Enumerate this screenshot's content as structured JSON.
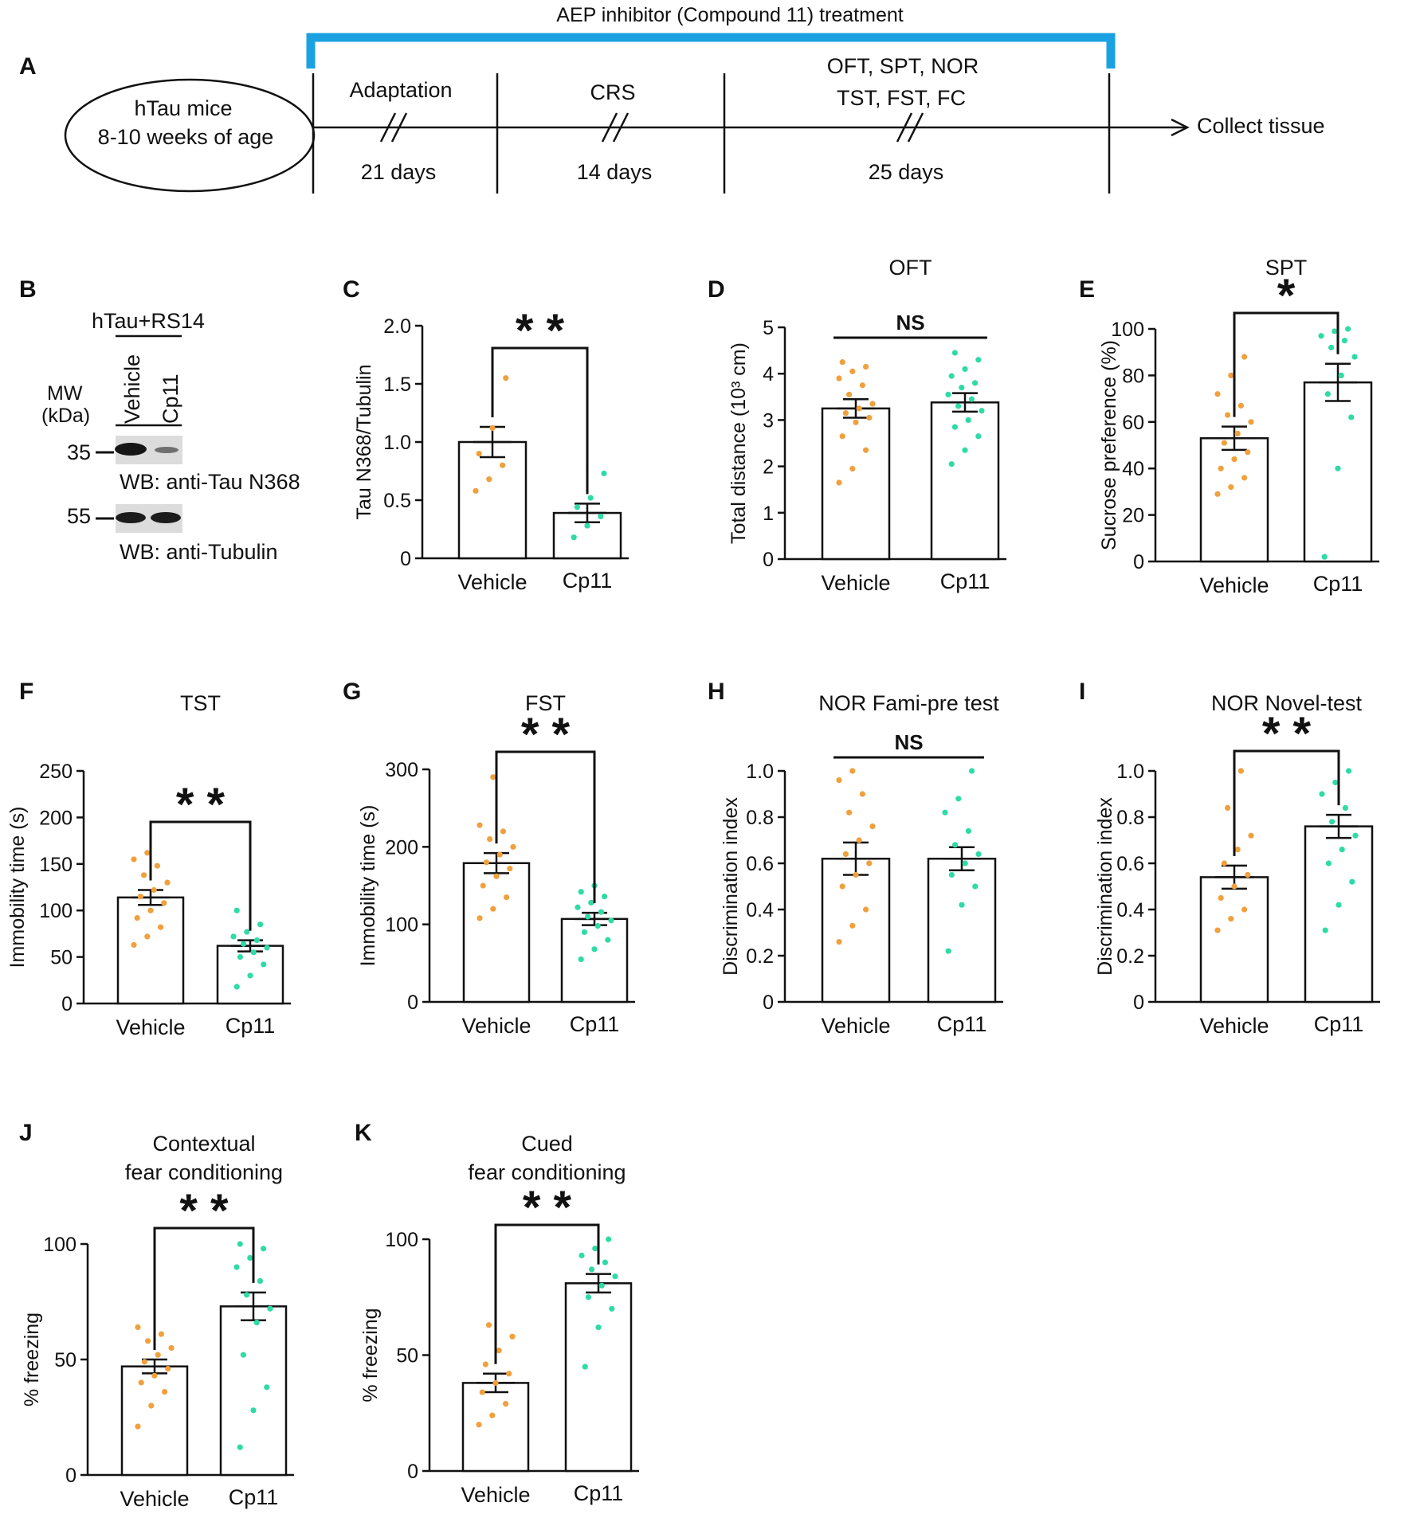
{
  "colors": {
    "vehicle_dots": "#F0A03C",
    "cp11_dots": "#2EDBA6",
    "treatment_bar": "#1AA1E2",
    "ink": "#111111"
  },
  "panel_a": {
    "label": "A",
    "treatment": "AEP inhibitor (Compound 11) treatment",
    "mouse_line1": "hTau mice",
    "mouse_line2": "8-10 weeks of age",
    "phases": [
      {
        "name": "Adaptation",
        "duration": "21 days"
      },
      {
        "name": "CRS",
        "duration": "14 days"
      },
      {
        "name_line1": "OFT, SPT, NOR",
        "name_line2": "TST, FST, FC",
        "duration": "25 days"
      }
    ],
    "end": "Collect tissue"
  },
  "panel_b": {
    "label": "B",
    "group": "hTau+RS14",
    "lanes": [
      "Vehicle",
      "Cp11"
    ],
    "mw_line1": "MW",
    "mw_line2": "(kDa)",
    "markers": [
      "35",
      "55"
    ],
    "blot_top": "WB: anti-Tau N368",
    "blot_bottom": "WB: anti-Tubulin"
  },
  "chart_data": [
    {
      "id": "C",
      "type": "bar",
      "title": "",
      "ylabel": "Tau N368/Tubulin",
      "categories": [
        "Vehicle",
        "Cp11"
      ],
      "values": [
        1.0,
        0.39
      ],
      "errors": [
        0.13,
        0.08
      ],
      "ylim": [
        0,
        2.0
      ],
      "yticks": [
        "0",
        "0.5",
        "1.0",
        "1.5",
        "2.0"
      ],
      "sig": "* *",
      "points": [
        [
          0.58,
          0.68,
          0.8,
          0.9,
          1.12,
          1.55
        ],
        [
          0.18,
          0.28,
          0.36,
          0.44,
          0.52,
          0.73
        ]
      ]
    },
    {
      "id": "D",
      "type": "bar",
      "title": "OFT",
      "ylabel": "Total distance (10³ cm)",
      "categories": [
        "Vehicle",
        "Cp11"
      ],
      "values": [
        3.25,
        3.38
      ],
      "errors": [
        0.2,
        0.2
      ],
      "ylim": [
        0,
        5
      ],
      "yticks": [
        "0",
        "1",
        "2",
        "3",
        "4",
        "5"
      ],
      "sig": "NS",
      "points": [
        [
          1.65,
          1.95,
          2.35,
          2.65,
          2.95,
          3.05,
          3.15,
          3.25,
          3.35,
          3.55,
          3.75,
          3.9,
          4.05,
          4.15,
          4.25
        ],
        [
          2.05,
          2.35,
          2.65,
          2.85,
          3.0,
          3.2,
          3.3,
          3.45,
          3.55,
          3.7,
          3.8,
          3.95,
          4.1,
          4.3,
          4.45
        ]
      ]
    },
    {
      "id": "E",
      "type": "bar",
      "title": "SPT",
      "ylabel": "Sucrose preference (%)",
      "categories": [
        "Vehicle",
        "Cp11"
      ],
      "values": [
        53,
        77
      ],
      "errors": [
        5,
        8
      ],
      "ylim": [
        0,
        100
      ],
      "yticks": [
        "0",
        "20",
        "40",
        "60",
        "80",
        "100"
      ],
      "sig": "*",
      "points": [
        [
          29,
          32,
          36,
          40,
          44,
          47,
          51,
          55,
          60,
          63,
          67,
          72,
          80,
          88
        ],
        [
          2,
          40,
          62,
          72,
          80,
          88,
          92,
          95,
          97,
          99,
          100
        ]
      ]
    },
    {
      "id": "F",
      "type": "bar",
      "title": "TST",
      "ylabel": "Immobility time (s)",
      "categories": [
        "Vehicle",
        "Cp11"
      ],
      "values": [
        114,
        62
      ],
      "errors": [
        8,
        6
      ],
      "ylim": [
        0,
        250
      ],
      "yticks": [
        "0",
        "50",
        "100",
        "150",
        "200",
        "250"
      ],
      "sig": "* *",
      "points": [
        [
          63,
          72,
          82,
          92,
          100,
          108,
          115,
          122,
          130,
          138,
          148,
          155,
          162
        ],
        [
          18,
          30,
          42,
          50,
          55,
          60,
          64,
          68,
          72,
          77,
          85,
          100
        ]
      ]
    },
    {
      "id": "G",
      "type": "bar",
      "title": "FST",
      "ylabel": "Immobility time (s)",
      "categories": [
        "Vehicle",
        "Cp11"
      ],
      "values": [
        179,
        107
      ],
      "errors": [
        13,
        8
      ],
      "ylim": [
        0,
        300
      ],
      "yticks": [
        "0",
        "100",
        "200",
        "300"
      ],
      "sig": "* *",
      "points": [
        [
          108,
          120,
          135,
          150,
          162,
          172,
          180,
          190,
          200,
          210,
          220,
          228,
          290
        ],
        [
          55,
          68,
          80,
          90,
          98,
          105,
          110,
          116,
          122,
          128,
          136,
          142,
          150
        ]
      ]
    },
    {
      "id": "H",
      "type": "bar",
      "title": "NOR Fami-pre test",
      "ylabel": "Discrimination index",
      "categories": [
        "Vehicle",
        "Cp11"
      ],
      "values": [
        0.62,
        0.62
      ],
      "errors": [
        0.07,
        0.05
      ],
      "ylim": [
        0,
        1.0
      ],
      "yticks": [
        "0",
        "0.2",
        "0.4",
        "0.6",
        "0.8",
        "1.0"
      ],
      "sig": "NS",
      "points": [
        [
          0.26,
          0.33,
          0.4,
          0.5,
          0.55,
          0.6,
          0.64,
          0.7,
          0.76,
          0.82,
          0.9,
          0.96,
          1.0
        ],
        [
          0.22,
          0.42,
          0.5,
          0.55,
          0.6,
          0.64,
          0.68,
          0.74,
          0.82,
          0.88,
          1.0
        ]
      ]
    },
    {
      "id": "I",
      "type": "bar",
      "title": "NOR Novel-test",
      "ylabel": "Discrimination index",
      "categories": [
        "Vehicle",
        "Cp11"
      ],
      "values": [
        0.54,
        0.76
      ],
      "errors": [
        0.05,
        0.05
      ],
      "ylim": [
        0,
        1.0
      ],
      "yticks": [
        "0",
        "0.2",
        "0.4",
        "0.6",
        "0.8",
        "1.0"
      ],
      "sig": "* *",
      "points": [
        [
          0.31,
          0.36,
          0.4,
          0.45,
          0.5,
          0.55,
          0.6,
          0.66,
          0.72,
          0.84,
          1.0
        ],
        [
          0.31,
          0.42,
          0.52,
          0.6,
          0.66,
          0.72,
          0.78,
          0.84,
          0.9,
          0.95,
          1.0
        ]
      ]
    },
    {
      "id": "J",
      "type": "bar",
      "title": "Contextual",
      "title2": "fear conditioning",
      "ylabel": "% freezing",
      "categories": [
        "Vehicle",
        "Cp11"
      ],
      "values": [
        47,
        73
      ],
      "errors": [
        3,
        6
      ],
      "ylim": [
        0,
        100
      ],
      "yticks": [
        "0",
        "50",
        "100"
      ],
      "sig": "* *",
      "points": [
        [
          21,
          30,
          36,
          40,
          43,
          46,
          49,
          52,
          55,
          58,
          61,
          64
        ],
        [
          12,
          28,
          38,
          52,
          66,
          72,
          78,
          84,
          90,
          94,
          98,
          100
        ]
      ]
    },
    {
      "id": "K",
      "type": "bar",
      "title": "Cued",
      "title2": "fear conditioning",
      "ylabel": "% freezing",
      "categories": [
        "Vehicle",
        "Cp11"
      ],
      "values": [
        38,
        81
      ],
      "errors": [
        4,
        4
      ],
      "ylim": [
        0,
        100
      ],
      "yticks": [
        "0",
        "50",
        "100"
      ],
      "sig": "* *",
      "points": [
        [
          20,
          24,
          29,
          34,
          38,
          42,
          46,
          52,
          58,
          63
        ],
        [
          45,
          62,
          70,
          75,
          80,
          84,
          87,
          90,
          93,
          96,
          100
        ]
      ]
    }
  ]
}
